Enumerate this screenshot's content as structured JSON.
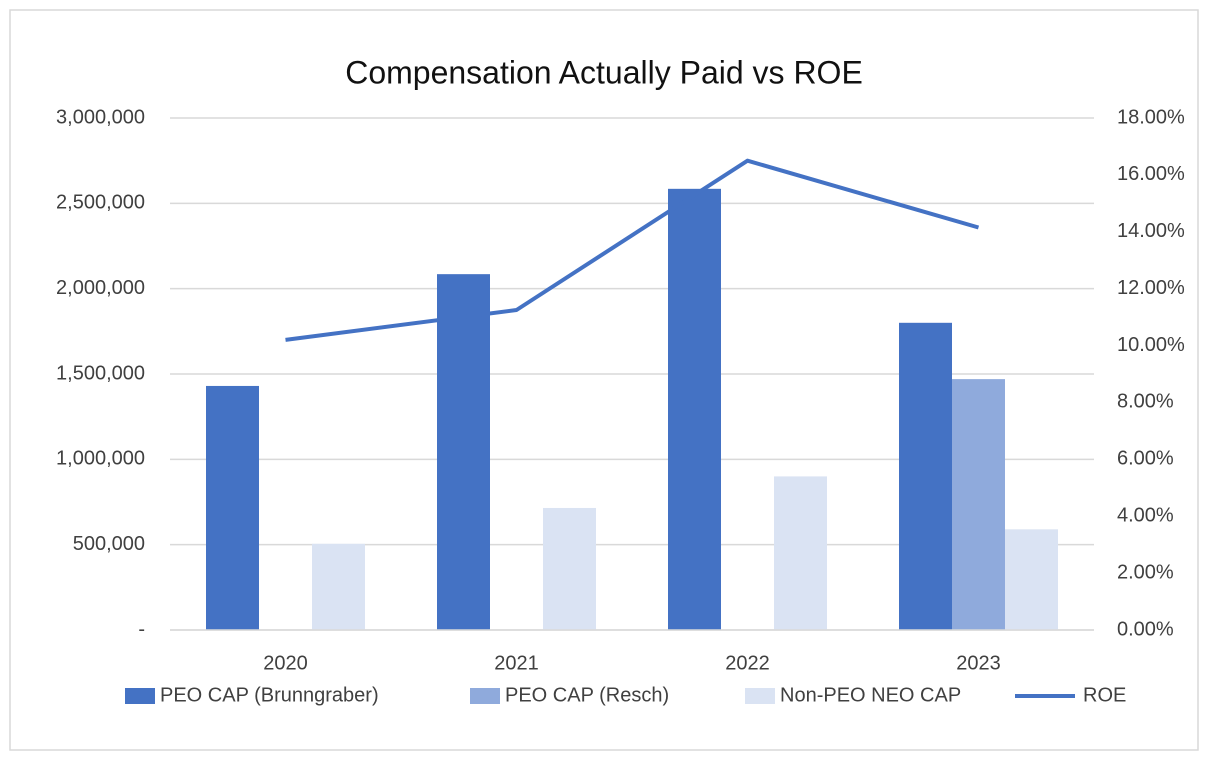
{
  "chart_data": {
    "type": "bar",
    "title": "Compensation Actually Paid vs ROE",
    "categories": [
      "2020",
      "2021",
      "2022",
      "2023"
    ],
    "series": [
      {
        "name": "PEO CAP (Brunngraber)",
        "type": "bar",
        "color": "#4472c4",
        "values": [
          1430000,
          2085000,
          2585000,
          1800000
        ]
      },
      {
        "name": "PEO CAP (Resch)",
        "type": "bar",
        "color": "#8faadc",
        "values": [
          null,
          null,
          null,
          1470000
        ]
      },
      {
        "name": "Non-PEO NEO CAP",
        "type": "bar",
        "color": "#dae3f3",
        "values": [
          505000,
          715000,
          900000,
          590000
        ]
      },
      {
        "name": "ROE",
        "type": "line",
        "axis": "y2",
        "color": "#4472c4",
        "values": [
          10.2,
          11.25,
          16.5,
          14.15
        ]
      }
    ],
    "ylim": [
      0,
      3000000
    ],
    "yticks": [
      {
        "value": 0,
        "label": "-"
      },
      {
        "value": 500000,
        "label": "500,000"
      },
      {
        "value": 1000000,
        "label": "1,000,000"
      },
      {
        "value": 1500000,
        "label": "1,500,000"
      },
      {
        "value": 2000000,
        "label": "2,000,000"
      },
      {
        "value": 2500000,
        "label": "2,500,000"
      },
      {
        "value": 3000000,
        "label": "3,000,000"
      }
    ],
    "y2lim": [
      0,
      18
    ],
    "y2ticks": [
      {
        "value": 0,
        "label": "0.00%"
      },
      {
        "value": 2,
        "label": "2.00%"
      },
      {
        "value": 4,
        "label": "4.00%"
      },
      {
        "value": 6,
        "label": "6.00%"
      },
      {
        "value": 8,
        "label": "8.00%"
      },
      {
        "value": 10,
        "label": "10.00%"
      },
      {
        "value": 12,
        "label": "12.00%"
      },
      {
        "value": 14,
        "label": "14.00%"
      },
      {
        "value": 16,
        "label": "16.00%"
      },
      {
        "value": 18,
        "label": "18.00%"
      }
    ],
    "grid": true,
    "legend": "bottom"
  }
}
